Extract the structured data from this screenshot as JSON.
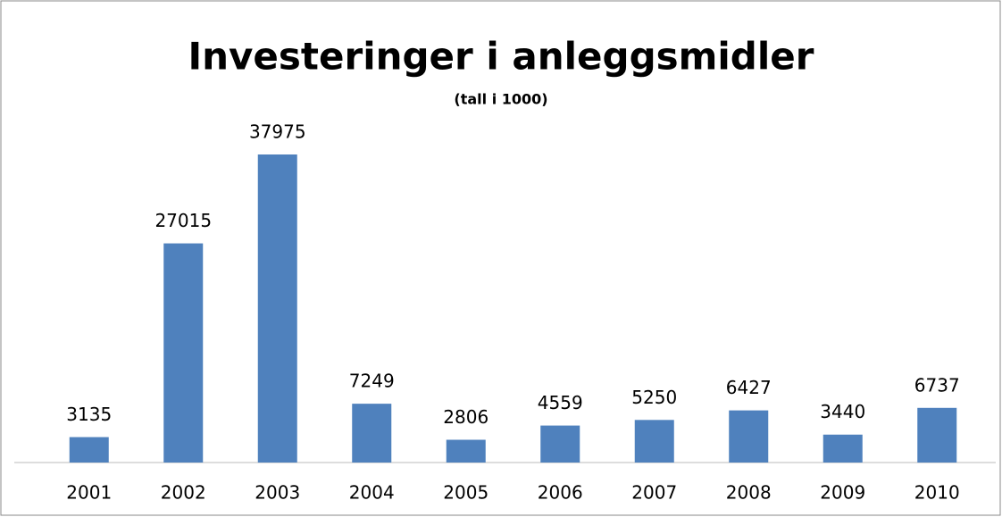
{
  "chart_data": {
    "type": "bar",
    "title": "Investeringer i anleggsmidler",
    "subtitle": "(tall i 1000)",
    "categories": [
      "2001",
      "2002",
      "2003",
      "2004",
      "2005",
      "2006",
      "2007",
      "2008",
      "2009",
      "2010"
    ],
    "values": [
      3135,
      27015,
      37975,
      7249,
      2806,
      4559,
      5250,
      6427,
      3440,
      6737
    ],
    "color": "#4f81bd"
  }
}
